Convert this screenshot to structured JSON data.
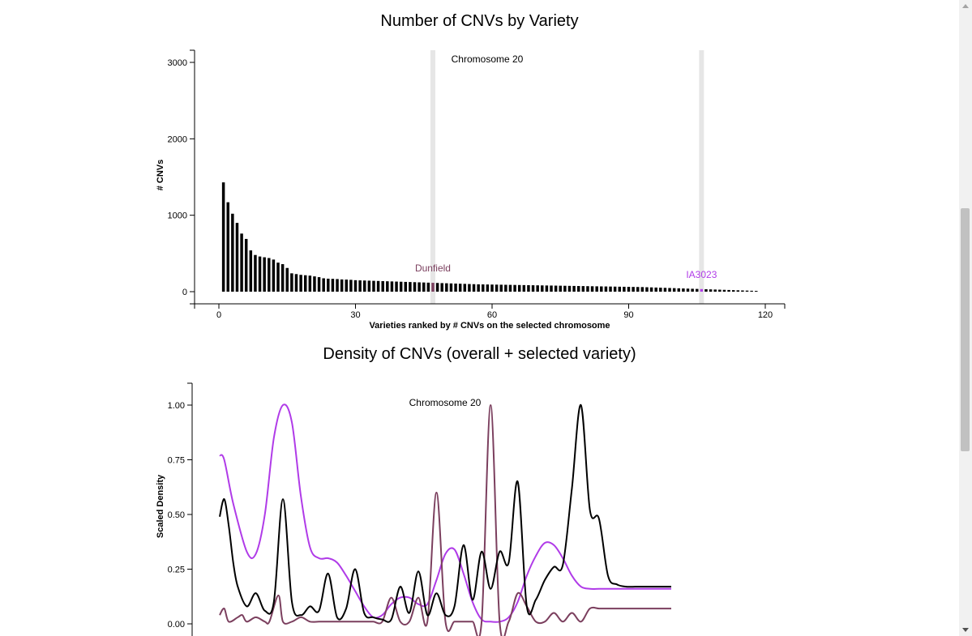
{
  "chart_data": [
    {
      "type": "bar",
      "title": "Number of CNVs by Variety",
      "subtitle": "Chromosome 20",
      "xlabel": "Varieties ranked by # CNVs on the selected chromosome",
      "ylabel": "# CNVs",
      "xlim": [
        -5,
        125
      ],
      "ylim": [
        -150,
        3100
      ],
      "xticks": [
        0,
        30,
        60,
        90,
        120
      ],
      "yticks": [
        0,
        1000,
        2000,
        3000
      ],
      "x": [
        1,
        2,
        3,
        4,
        5,
        6,
        7,
        8,
        9,
        10,
        11,
        12,
        13,
        14,
        15,
        16,
        17,
        18,
        19,
        20,
        21,
        22,
        23,
        24,
        25,
        26,
        27,
        28,
        29,
        30,
        31,
        32,
        33,
        34,
        35,
        36,
        37,
        38,
        39,
        40,
        41,
        42,
        43,
        44,
        45,
        46,
        47,
        48,
        49,
        50,
        51,
        52,
        53,
        54,
        55,
        56,
        57,
        58,
        59,
        60,
        61,
        62,
        63,
        64,
        65,
        66,
        67,
        68,
        69,
        70,
        71,
        72,
        73,
        74,
        75,
        76,
        77,
        78,
        79,
        80,
        81,
        82,
        83,
        84,
        85,
        86,
        87,
        88,
        89,
        90,
        91,
        92,
        93,
        94,
        95,
        96,
        97,
        98,
        99,
        100,
        101,
        102,
        103,
        104,
        105,
        106,
        107,
        108,
        109,
        110,
        111,
        112,
        113,
        114,
        115,
        116,
        117,
        118
      ],
      "values": [
        1430,
        1170,
        1020,
        900,
        760,
        690,
        540,
        480,
        460,
        450,
        440,
        420,
        380,
        360,
        310,
        240,
        230,
        220,
        215,
        210,
        200,
        190,
        175,
        170,
        168,
        165,
        160,
        158,
        155,
        150,
        148,
        146,
        144,
        142,
        140,
        138,
        136,
        134,
        132,
        130,
        128,
        126,
        124,
        122,
        120,
        118,
        116,
        114,
        112,
        110,
        108,
        106,
        104,
        102,
        100,
        98,
        96,
        95,
        94,
        93,
        92,
        91,
        90,
        89,
        88,
        87,
        86,
        85,
        84,
        83,
        82,
        81,
        80,
        79,
        78,
        77,
        76,
        75,
        74,
        73,
        72,
        71,
        70,
        69,
        68,
        67,
        66,
        65,
        64,
        63,
        62,
        61,
        60,
        58,
        56,
        54,
        52,
        50,
        48,
        46,
        44,
        42,
        40,
        38,
        36,
        34,
        32,
        30,
        28,
        26,
        24,
        22,
        20,
        18,
        16,
        14,
        12,
        10
      ],
      "highlights": [
        {
          "label": "Dunfield",
          "rank": 47,
          "color": "#7b3f5e"
        },
        {
          "label": "IA3023",
          "rank": 106,
          "color": "#b03be8"
        }
      ],
      "bar_color": "#000000",
      "highlight_band_color": "#e6e6e6"
    },
    {
      "type": "line",
      "title": "Density of CNVs (overall + selected variety)",
      "subtitle": "Chromosome 20",
      "xlabel": "",
      "ylabel": "Scaled Density",
      "ylim": [
        0,
        1.1
      ],
      "yticks": [
        "0.00",
        "0.25",
        "0.50",
        "0.75",
        "1.00"
      ],
      "xlim": [
        0,
        100
      ],
      "series": [
        {
          "color": "#000000",
          "x": [
            0,
            1,
            2,
            3,
            4,
            6,
            8,
            10,
            12,
            14,
            16,
            18,
            20,
            22,
            24,
            26,
            28,
            30,
            32,
            34,
            36,
            38,
            40,
            42,
            44,
            46,
            48,
            50,
            52,
            54,
            56,
            58,
            60,
            62,
            64,
            66,
            68,
            70,
            72,
            74,
            76,
            78,
            80,
            82,
            84,
            86,
            88,
            90,
            92,
            93,
            94,
            96,
            98,
            100
          ],
          "y": [
            0.49,
            0.57,
            0.45,
            0.28,
            0.17,
            0.08,
            0.14,
            0.06,
            0.1,
            0.57,
            0.1,
            0.04,
            0.08,
            0.06,
            0.23,
            0.03,
            0.07,
            0.25,
            0.05,
            0.03,
            0.02,
            0.02,
            0.17,
            0.05,
            0.24,
            0.04,
            0.14,
            0.04,
            0.08,
            0.36,
            0.11,
            0.33,
            0.16,
            0.33,
            0.28,
            0.65,
            0.08,
            0.11,
            0.2,
            0.26,
            0.27,
            0.62,
            1.0,
            0.52,
            0.48,
            0.22,
            0.18,
            0.17,
            0.17,
            0.17,
            0.17,
            0.17,
            0.17,
            0.17
          ]
        },
        {
          "color": "#b03be8",
          "x": [
            0,
            1,
            3,
            6,
            8,
            10,
            12,
            14,
            16,
            18,
            20,
            22,
            24,
            26,
            28,
            30,
            32,
            34,
            36,
            38,
            40,
            42,
            44,
            46,
            48,
            50,
            52,
            54,
            56,
            58,
            60,
            62,
            64,
            66,
            68,
            70,
            72,
            74,
            76,
            78,
            80,
            82,
            84,
            86,
            88,
            90,
            92,
            94,
            96,
            98,
            100
          ],
          "y": [
            0.77,
            0.75,
            0.55,
            0.33,
            0.32,
            0.5,
            0.85,
            1.0,
            0.92,
            0.58,
            0.35,
            0.3,
            0.3,
            0.28,
            0.22,
            0.15,
            0.08,
            0.03,
            0.04,
            0.09,
            0.12,
            0.12,
            0.09,
            0.09,
            0.2,
            0.32,
            0.34,
            0.23,
            0.1,
            0.02,
            0.01,
            0.01,
            0.03,
            0.1,
            0.22,
            0.31,
            0.37,
            0.36,
            0.3,
            0.22,
            0.17,
            0.16,
            0.16,
            0.16,
            0.16,
            0.16,
            0.16,
            0.16,
            0.16,
            0.16,
            0.16
          ]
        },
        {
          "color": "#7b3f5e",
          "x": [
            0,
            1,
            2,
            4,
            5,
            6,
            8,
            10,
            11,
            13,
            14,
            16,
            18,
            20,
            22,
            24,
            26,
            28,
            30,
            32,
            34,
            36,
            38,
            40,
            42,
            44,
            46,
            48,
            50,
            52,
            54,
            56,
            58,
            60,
            62,
            64,
            66,
            68,
            70,
            72,
            74,
            76,
            78,
            80,
            82,
            84,
            86,
            88,
            90,
            92,
            94,
            96,
            98,
            100
          ],
          "y": [
            0.04,
            0.07,
            0.01,
            0.03,
            0.04,
            0.01,
            0.03,
            0.01,
            0.01,
            0.13,
            0.01,
            0.01,
            0.03,
            0.01,
            0.01,
            0.01,
            0.01,
            0.01,
            0.01,
            0.01,
            0.01,
            0.01,
            0.12,
            0.01,
            0.01,
            0.12,
            0.01,
            0.6,
            0.01,
            0.01,
            0.01,
            0.01,
            0.01,
            1.0,
            0.01,
            0.01,
            0.14,
            0.08,
            0.01,
            0.01,
            0.05,
            0.01,
            0.05,
            0.01,
            0.07,
            0.07,
            0.07,
            0.07,
            0.07,
            0.07,
            0.07,
            0.07,
            0.07,
            0.07
          ]
        }
      ]
    }
  ]
}
